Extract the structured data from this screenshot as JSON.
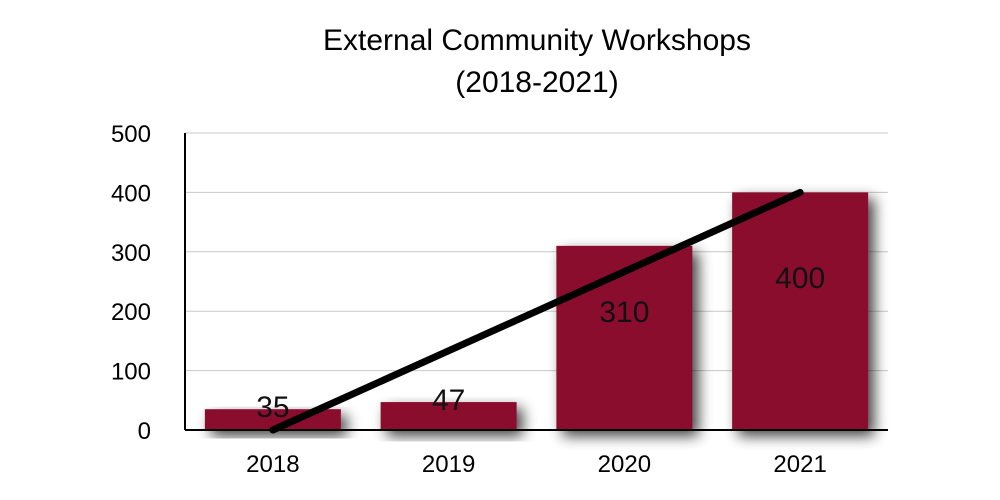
{
  "chart_data": {
    "type": "bar",
    "title": "External Community Workshops",
    "subtitle": "(2018-2021)",
    "categories": [
      "2018",
      "2019",
      "2020",
      "2021"
    ],
    "values": [
      35,
      47,
      310,
      400
    ],
    "data_labels": [
      "35",
      "47",
      "310",
      "400"
    ],
    "ylim": [
      0,
      500
    ],
    "yticks": [
      0,
      100,
      200,
      300,
      400,
      500
    ],
    "ytick_labels": [
      "0",
      "100",
      "200",
      "300",
      "400",
      "500"
    ],
    "xlabel": "",
    "ylabel": "",
    "grid": true,
    "legend": "none",
    "trendline": {
      "type": "linear",
      "start": {
        "category": "2018",
        "value": 0
      },
      "end": {
        "category": "2021",
        "value": 400
      }
    },
    "colors": {
      "bar": "#8b0a2e",
      "trendline": "#000000",
      "grid": "#c8c8c8",
      "axis": "#000000"
    }
  }
}
